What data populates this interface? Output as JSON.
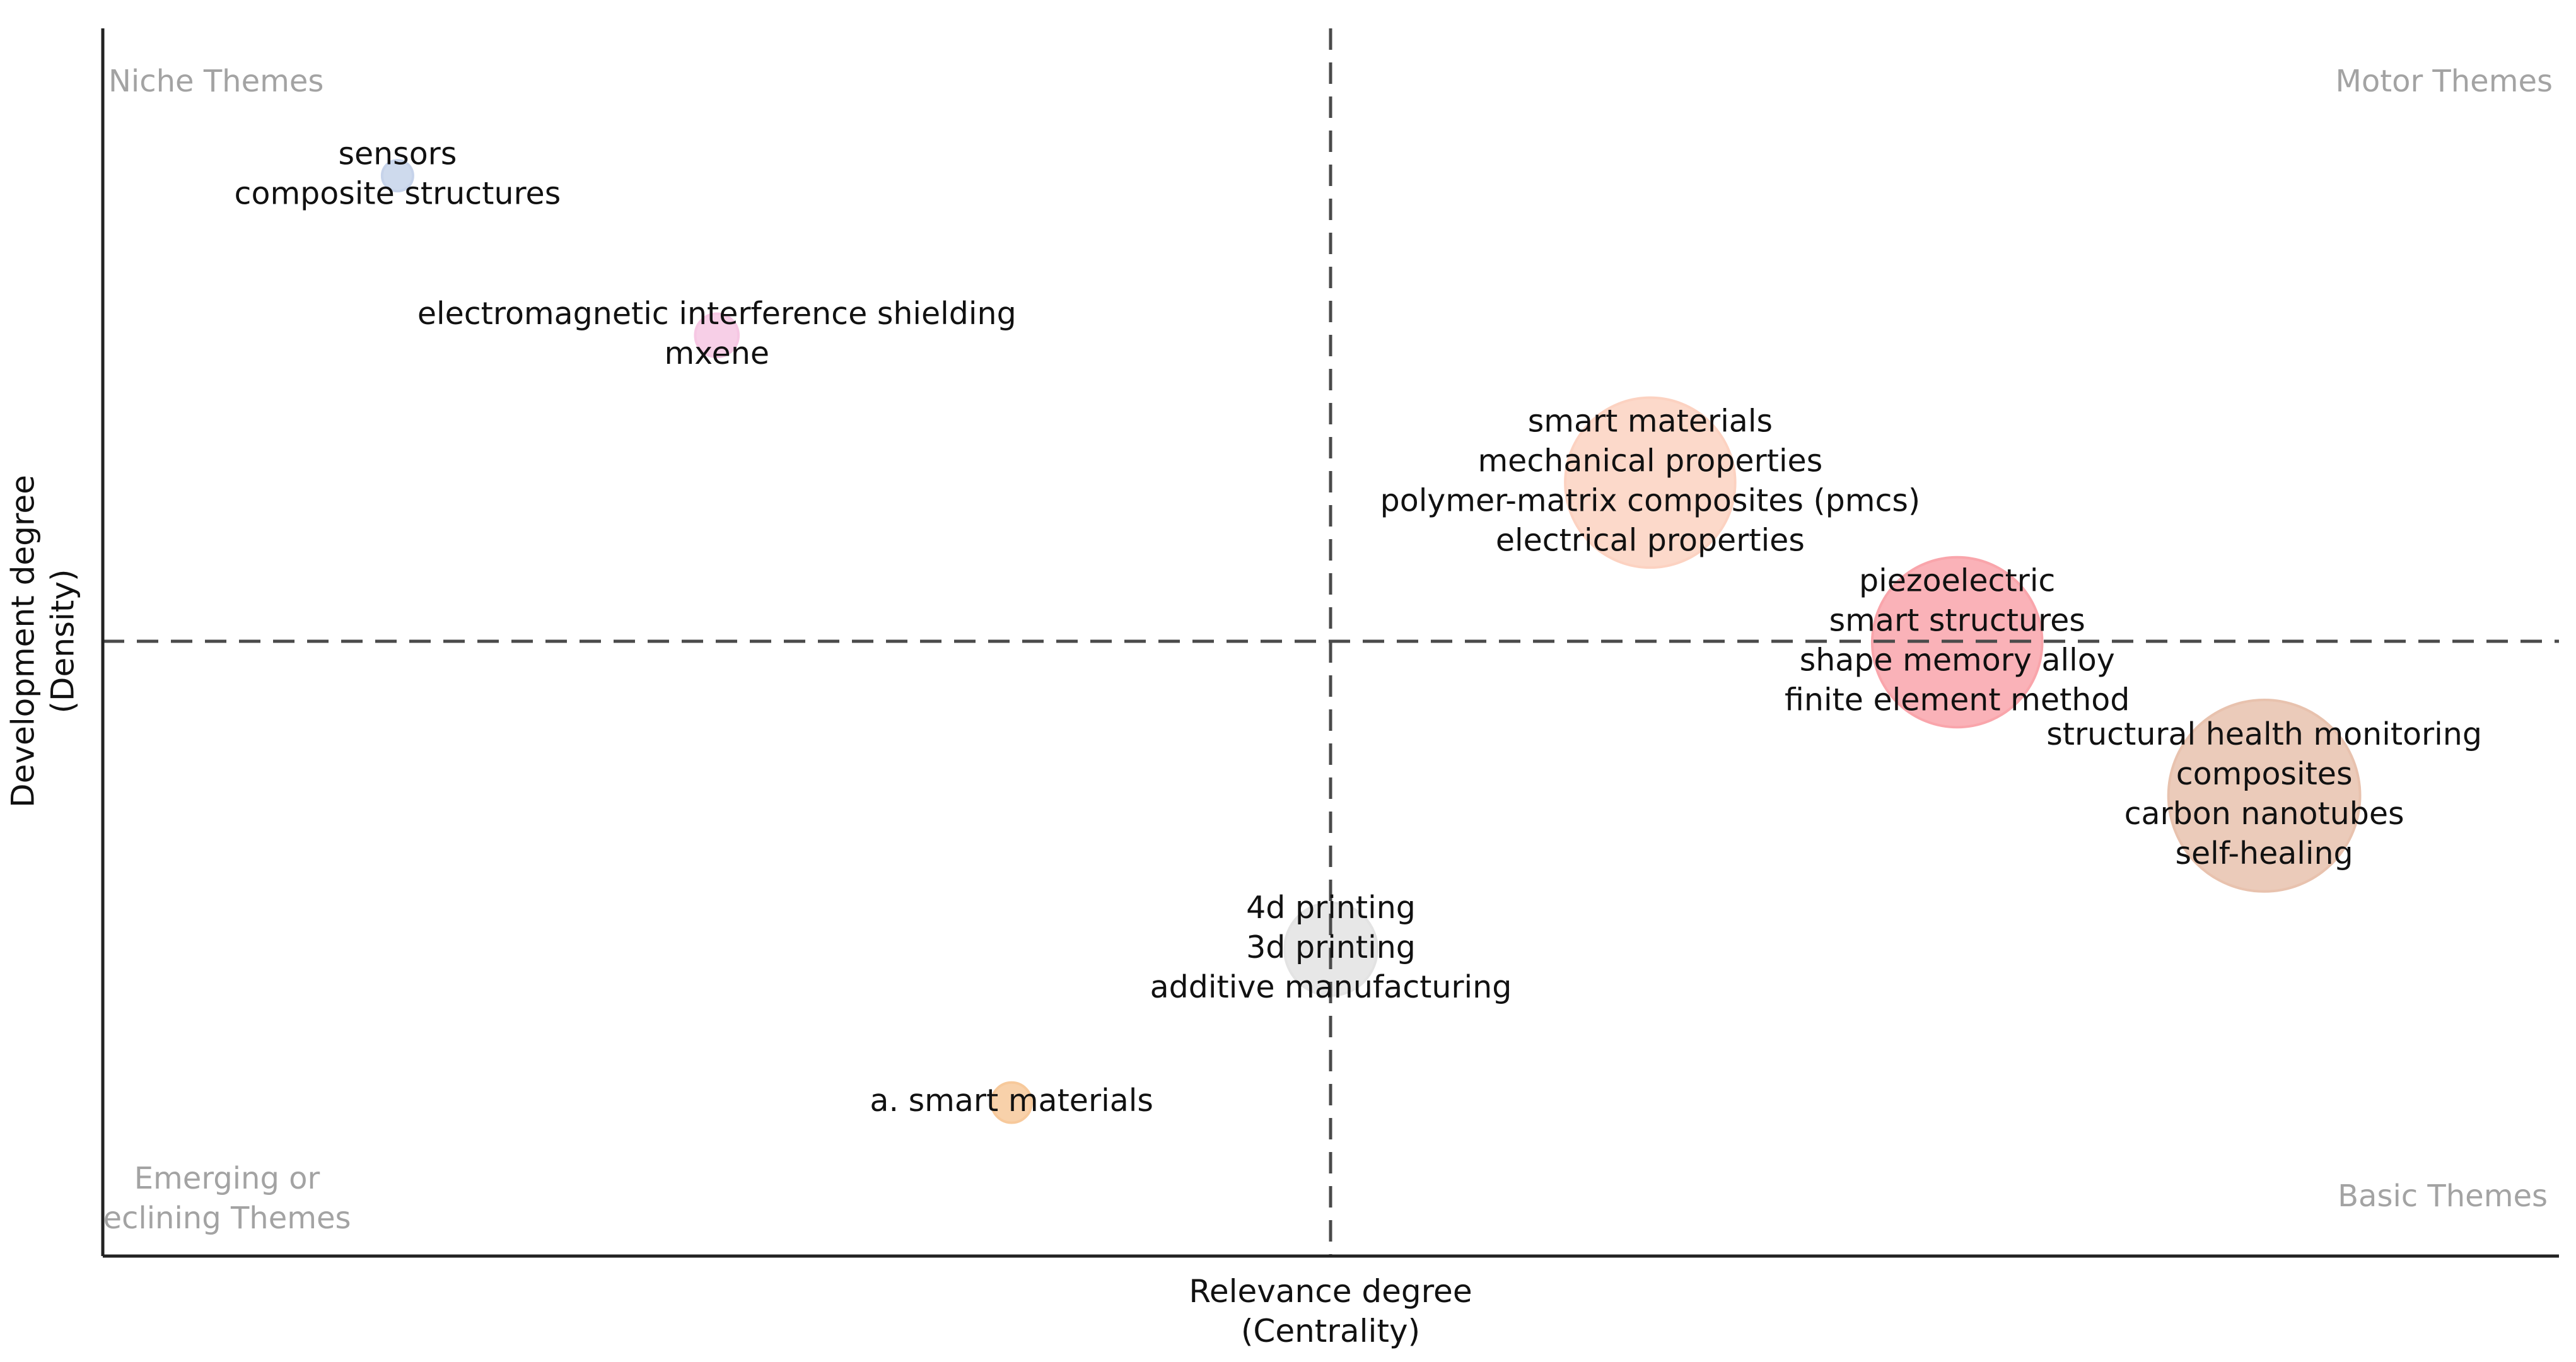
{
  "chart_data": {
    "type": "scatter",
    "title": "",
    "xlabel": "Relevance degree\n(Centrality)",
    "ylabel": "Development degree\n(Density)",
    "xlim": [
      0,
      1
    ],
    "ylim": [
      0,
      1
    ],
    "grid": false,
    "legend": "none",
    "quadrant_labels": {
      "top_left": "Niche Themes",
      "top_right": "Motor Themes",
      "bottom_left": "Emerging or\neclining Themes",
      "bottom_right": "Basic Themes"
    },
    "points": [
      {
        "x": 0.12,
        "y": 0.88,
        "size": 0.1,
        "color": "#c6d3ea",
        "labels": [
          "sensors",
          "composite structures"
        ]
      },
      {
        "x": 0.25,
        "y": 0.75,
        "size": 0.14,
        "color": "#f6c7e3",
        "labels": [
          "electromagnetic interference shielding",
          "mxene"
        ]
      },
      {
        "x": 0.63,
        "y": 0.63,
        "size": 0.55,
        "color": "#fcd2c1",
        "labels": [
          "smart materials",
          "mechanical properties",
          "polymer-matrix composites (pmcs)",
          "electrical properties"
        ]
      },
      {
        "x": 0.755,
        "y": 0.5,
        "size": 0.55,
        "color": "#f9a5ab",
        "labels": [
          "piezoelectric",
          "smart structures",
          "shape memory alloy",
          "finite element method"
        ]
      },
      {
        "x": 0.88,
        "y": 0.375,
        "size": 0.62,
        "color": "#e8c2ae",
        "labels": [
          "structural health monitoring",
          "composites",
          "carbon nanotubes",
          "self-healing"
        ]
      },
      {
        "x": 0.5,
        "y": 0.25,
        "size": 0.3,
        "color": "#e3e3e3",
        "labels": [
          "4d printing",
          "3d printing",
          "additive manufacturing"
        ]
      },
      {
        "x": 0.37,
        "y": 0.125,
        "size": 0.13,
        "color": "#f7c99b",
        "labels": [
          "a. smart materials"
        ]
      }
    ]
  }
}
